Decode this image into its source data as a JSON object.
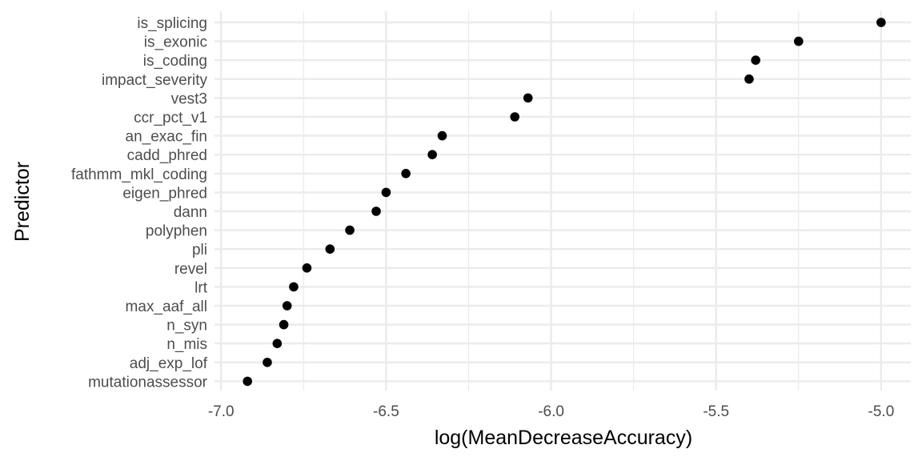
{
  "chart_data": {
    "type": "scatter",
    "title": "",
    "xlabel": "log(MeanDecreaseAccuracy)",
    "ylabel": "Predictor",
    "xlim": [
      -7.02,
      -4.91
    ],
    "x_ticks": [
      -7.0,
      -6.5,
      -6.0,
      -5.5,
      -5.0
    ],
    "x_tick_labels": [
      "-7.0",
      "-6.5",
      "-6.0",
      "-5.5",
      "-5.0"
    ],
    "grid": true,
    "legend": "none",
    "categories": [
      "is_splicing",
      "is_exonic",
      "is_coding",
      "impact_severity",
      "vest3",
      "ccr_pct_v1",
      "an_exac_fin",
      "cadd_phred",
      "fathmm_mkl_coding",
      "eigen_phred",
      "dann",
      "polyphen",
      "pli",
      "revel",
      "lrt",
      "max_aaf_all",
      "n_syn",
      "n_mis",
      "adj_exp_lof",
      "mutationassessor"
    ],
    "values": [
      -5.0,
      -5.25,
      -5.38,
      -5.4,
      -6.07,
      -6.11,
      -6.33,
      -6.36,
      -6.44,
      -6.5,
      -6.53,
      -6.61,
      -6.67,
      -6.74,
      -6.78,
      -6.8,
      -6.81,
      -6.83,
      -6.86,
      -6.92
    ],
    "colors": {
      "background": "#ffffff",
      "grid": "#ebebeb",
      "point": "#000000",
      "tick_text": "#4d4d4d",
      "title_text": "#000000"
    }
  }
}
